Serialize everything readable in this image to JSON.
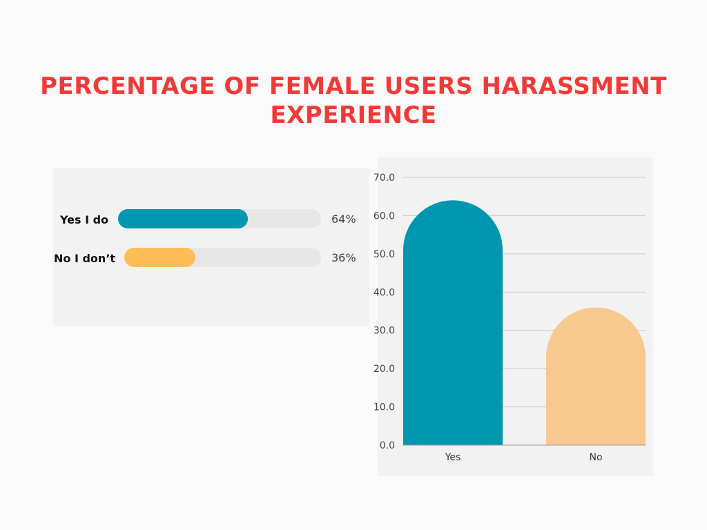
{
  "title": "PERCENTAGE OF FEMALE USERS HARASSMENT EXPERIENCE",
  "colors": {
    "title": "#f03a37",
    "teal": "#0096b0",
    "yellow": "#ffbd59",
    "peach": "#f7c98e",
    "panel": "#f2f2f2",
    "track": "#e7e7e7"
  },
  "progress": [
    {
      "label": "Yes I do",
      "value": 64,
      "display": "64%",
      "color": "#0096b0"
    },
    {
      "label": "No I don’t",
      "value": 36,
      "display": "36%",
      "color": "#ffbd59"
    }
  ],
  "chart_data": {
    "type": "bar",
    "categories": [
      "Yes",
      "No"
    ],
    "values": [
      64,
      36
    ],
    "ylim": [
      0,
      70
    ],
    "yticks": [
      "0.0",
      "10.0",
      "20.0",
      "30.0",
      "40.0",
      "50.0",
      "60.0",
      "70.0"
    ],
    "bar_colors": [
      "#0096b0",
      "#f7c98e"
    ],
    "grid": true,
    "legend": "none"
  }
}
